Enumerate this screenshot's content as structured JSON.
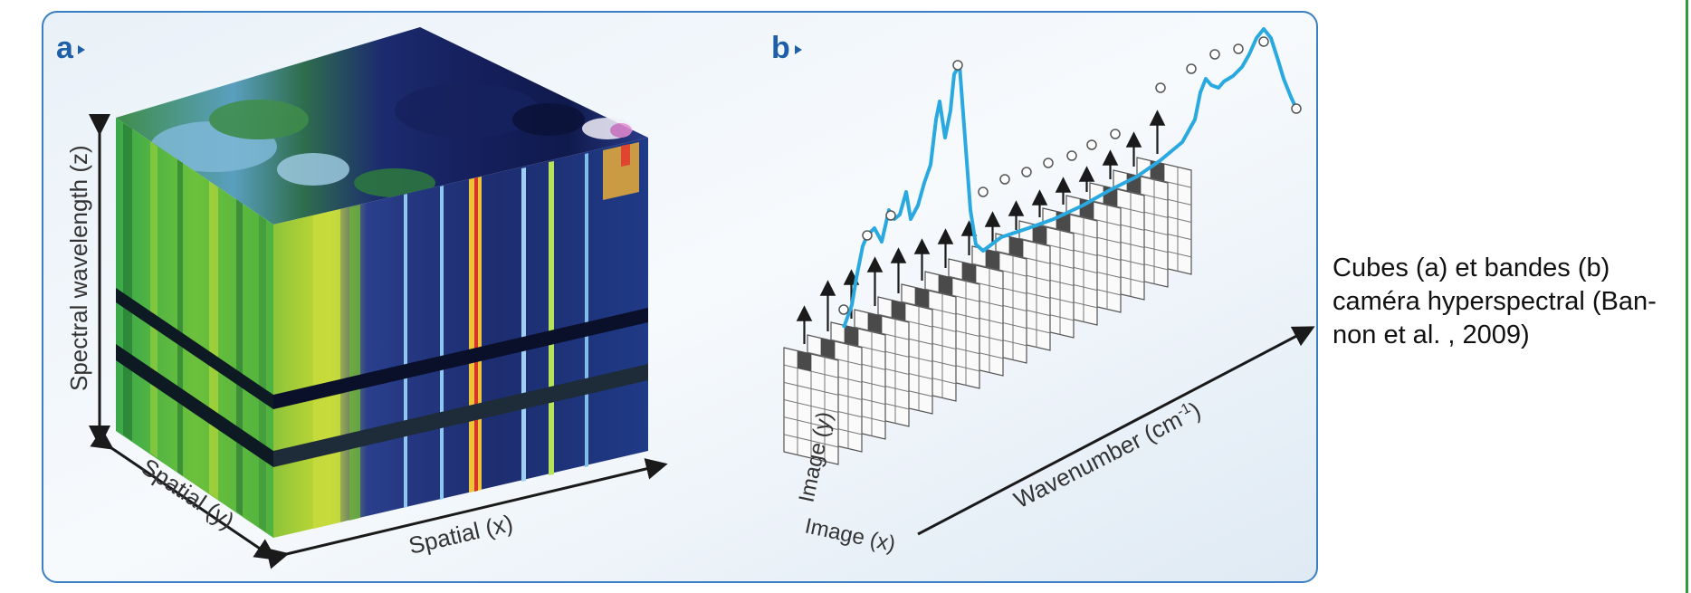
{
  "panel_a": {
    "letter": "a",
    "axis_z": "Spectral wavelength (z)",
    "axis_y": "Spatial (y)",
    "axis_x": "Spatial (x)"
  },
  "panel_b": {
    "letter": "b",
    "axis_image_y": "Image (y)",
    "axis_image_x": "Image (x)",
    "axis_wavenumber": "Wavenumber (cm",
    "axis_wavenumber_sup": "-1",
    "axis_wavenumber_close": ")"
  },
  "caption": {
    "line1": "Cubes (a) et bandes (b)",
    "line2": "caméra hyperspectral  (Ban-",
    "line3": "non et al. , 2009)"
  },
  "colors": {
    "frame_border": "#3a7fc1",
    "panel_letter": "#1f5fa8",
    "spectrum_line": "#29a9df",
    "green_rule": "#2e9a3a"
  }
}
